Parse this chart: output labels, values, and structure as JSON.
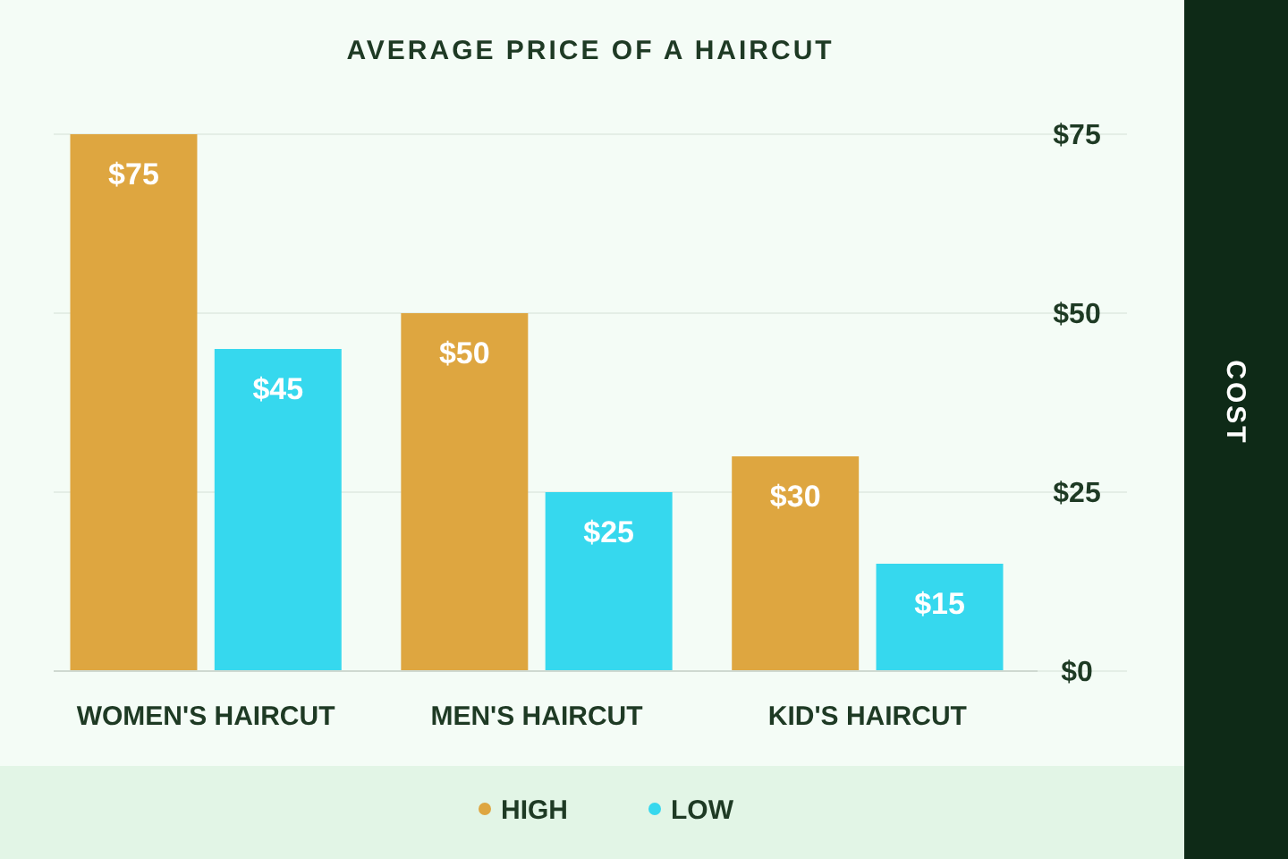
{
  "chart_data": {
    "type": "bar",
    "title": "AVERAGE PRICE OF A HAIRCUT",
    "ylabel": "COST",
    "categories": [
      "WOMEN'S HAIRCUT",
      "MEN'S HAIRCUT",
      "KID'S HAIRCUT"
    ],
    "series": [
      {
        "name": "HIGH",
        "color": "#dea640",
        "values": [
          75,
          50,
          30
        ],
        "value_labels": [
          "$75",
          "$50",
          "$30"
        ]
      },
      {
        "name": "LOW",
        "color": "#36d8ee",
        "values": [
          45,
          25,
          15
        ],
        "value_labels": [
          "$45",
          "$25",
          "$15"
        ]
      }
    ],
    "ylim": [
      0,
      75
    ],
    "yticks": [
      {
        "value": 0,
        "label": "$0"
      },
      {
        "value": 25,
        "label": "$25"
      },
      {
        "value": 50,
        "label": "$50"
      },
      {
        "value": 75,
        "label": "$75"
      }
    ],
    "grid": "y",
    "legend": "bottom"
  }
}
